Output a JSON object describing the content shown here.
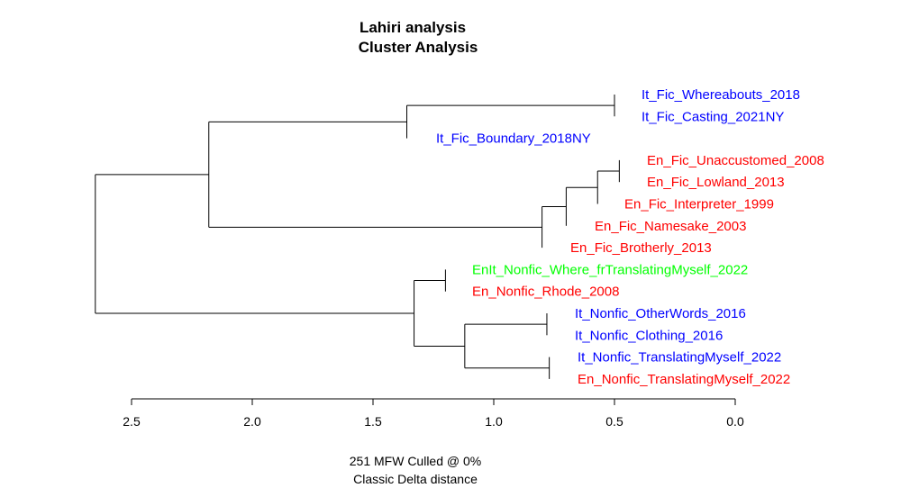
{
  "title": {
    "line1": "Lahiri analysis",
    "line2": "Cluster Analysis"
  },
  "caption": {
    "line1": "251 MFW  Culled @ 0%",
    "line2": "Classic Delta distance"
  },
  "colors": {
    "it": "#0000ff",
    "en": "#ff0000",
    "enit": "#00ff00",
    "line": "#000000"
  },
  "chart_data": {
    "type": "dendrogram",
    "orientation": "horizontal",
    "xlim": [
      0,
      2.5
    ],
    "x_reversed": true,
    "ticks": [
      "2.5",
      "2.0",
      "1.5",
      "1.0",
      "0.5",
      "0.0"
    ],
    "tick_values": [
      2.5,
      2.0,
      1.5,
      1.0,
      0.5,
      0.0
    ],
    "leaves": [
      {
        "label": "It_Fic_Whereabouts_2018",
        "group": "it"
      },
      {
        "label": "It_Fic_Casting_2021NY",
        "group": "it"
      },
      {
        "label": "It_Fic_Boundary_2018NY",
        "group": "it"
      },
      {
        "label": "En_Fic_Unaccustomed_2008",
        "group": "en"
      },
      {
        "label": "En_Fic_Lowland_2013",
        "group": "en"
      },
      {
        "label": "En_Fic_Interpreter_1999",
        "group": "en"
      },
      {
        "label": "En_Fic_Namesake_2003",
        "group": "en"
      },
      {
        "label": "En_Fic_Brotherly_2013",
        "group": "en"
      },
      {
        "label": "EnIt_Nonfic_Where_frTranslatingMyself_2022",
        "group": "enit"
      },
      {
        "label": "En_Nonfic_Rhode_2008",
        "group": "en"
      },
      {
        "label": "It_Nonfic_OtherWords_2016",
        "group": "it"
      },
      {
        "label": "It_Nonfic_Clothing_2016",
        "group": "it"
      },
      {
        "label": "It_Nonfic_TranslatingMyself_2022",
        "group": "it"
      },
      {
        "label": "En_Nonfic_TranslatingMyself_2022",
        "group": "en"
      }
    ],
    "merges": [
      {
        "a": "L0",
        "b": "L1",
        "height": 0.5
      },
      {
        "a": "M0",
        "b": "L2",
        "height": 1.36
      },
      {
        "a": "L3",
        "b": "L4",
        "height": 0.48
      },
      {
        "a": "M2",
        "b": "L5",
        "height": 0.57
      },
      {
        "a": "M3",
        "b": "L6",
        "height": 0.7
      },
      {
        "a": "M4",
        "b": "L7",
        "height": 0.8
      },
      {
        "a": "M1",
        "b": "M5",
        "height": 2.18
      },
      {
        "a": "L8",
        "b": "L9",
        "height": 1.2
      },
      {
        "a": "L10",
        "b": "L11",
        "height": 0.78
      },
      {
        "a": "L12",
        "b": "L13",
        "height": 0.77
      },
      {
        "a": "M8",
        "b": "M9",
        "height": 1.12
      },
      {
        "a": "M7",
        "b": "M10",
        "height": 1.33
      },
      {
        "a": "M6",
        "b": "M11",
        "height": 2.65
      }
    ]
  }
}
